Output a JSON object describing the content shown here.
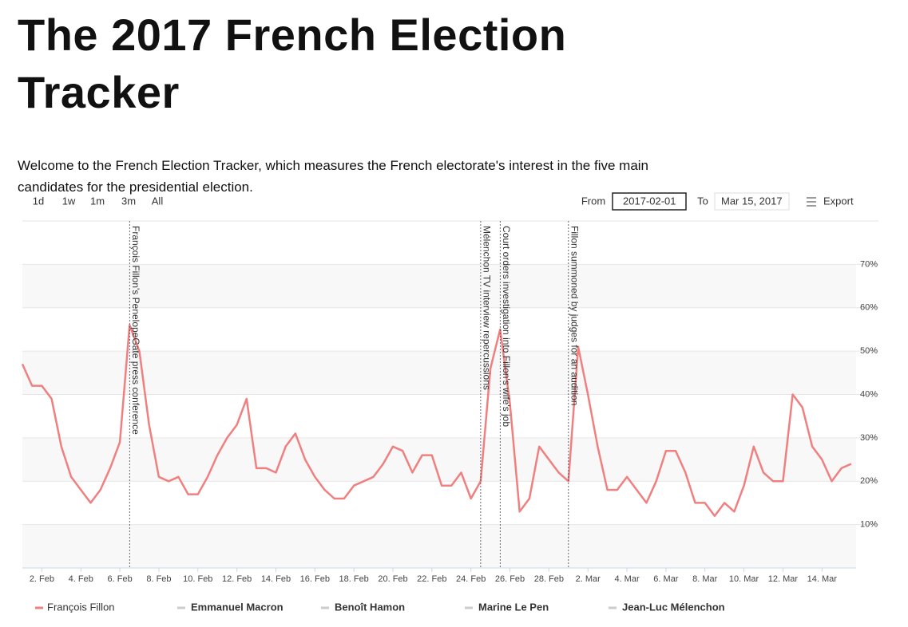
{
  "header": {
    "title": "The 2017 French Election Tracker",
    "intro": "Welcome to the French Election Tracker, which measures the French electorate's interest in the five main candidates for the presidential election."
  },
  "controls": {
    "ranges": [
      "1d",
      "1w",
      "1m",
      "3m",
      "All"
    ],
    "from_label": "From",
    "from_value": "2017-02-01",
    "to_label": "To",
    "to_value": "Mar 15, 2017",
    "export": "Export"
  },
  "chart_data": {
    "type": "line",
    "categories": [
      null,
      null,
      "2. Feb",
      null,
      null,
      null,
      "4. Feb",
      null,
      null,
      null,
      "6. Feb",
      null,
      null,
      null,
      "8. Feb",
      null,
      null,
      null,
      "10. Feb",
      null,
      null,
      null,
      "12. Feb",
      null,
      null,
      null,
      "14. Feb",
      null,
      null,
      null,
      "16. Feb",
      null,
      null,
      null,
      "18. Feb",
      null,
      null,
      null,
      "20. Feb",
      null,
      null,
      null,
      "22. Feb",
      null,
      null,
      null,
      "24. Feb",
      null,
      null,
      null,
      "26. Feb",
      null,
      null,
      null,
      "28. Feb",
      null,
      null,
      null,
      "2. Mar",
      null,
      null,
      null,
      "4. Mar",
      null,
      null,
      null,
      "6. Mar",
      null,
      null,
      null,
      "8. Mar",
      null,
      null,
      null,
      "10. Mar",
      null,
      null,
      null,
      "12. Mar",
      null,
      null,
      null,
      "14. Mar",
      null,
      null,
      null
    ],
    "series": [
      {
        "name": "François Fillon",
        "color": "#f08080",
        "values": [
          47,
          42,
          42,
          39,
          28,
          21,
          18,
          15,
          18,
          23,
          29,
          56,
          50,
          33,
          21,
          20,
          21,
          17,
          17,
          21,
          26,
          30,
          33,
          39,
          23,
          23,
          22,
          28,
          31,
          25,
          21,
          18,
          16,
          16,
          19,
          20,
          21,
          24,
          28,
          27,
          22,
          26,
          26,
          19,
          19,
          22,
          16,
          20,
          46,
          55,
          38,
          13,
          16,
          28,
          25,
          22,
          20,
          51,
          40,
          28,
          18,
          18,
          21,
          18,
          15,
          20,
          27,
          27,
          22,
          15,
          15,
          12,
          15,
          13,
          19,
          28,
          22,
          20,
          20,
          40,
          37,
          28,
          25,
          20,
          23,
          24
        ]
      }
    ],
    "hidden_series": [
      {
        "name": "Emmanuel Macron",
        "color": "#cccccc"
      },
      {
        "name": "Benoît Hamon",
        "color": "#cccccc"
      },
      {
        "name": "Marine Le Pen",
        "color": "#cccccc"
      },
      {
        "name": "Jean-Luc Mélenchon",
        "color": "#cccccc"
      }
    ],
    "annotations": [
      {
        "x": 11,
        "label": "François Fillon's PenelopeGate press conference"
      },
      {
        "x": 47,
        "label": "Mélenchon TV interview repercussions"
      },
      {
        "x": 49,
        "label": "Court orders investigation into Fillon's wife's job"
      },
      {
        "x": 56,
        "label": "Fillon summoned by judges for an audition"
      }
    ],
    "ylim": [
      0,
      80
    ],
    "yticks": [
      {
        "value": 10,
        "label": "10%"
      },
      {
        "value": 20,
        "label": "20%"
      },
      {
        "value": 30,
        "label": "30%"
      },
      {
        "value": 40,
        "label": "40%"
      },
      {
        "value": 50,
        "label": "50%"
      },
      {
        "value": 60,
        "label": "60%"
      },
      {
        "value": 70,
        "label": "70%"
      }
    ],
    "grid": true
  }
}
